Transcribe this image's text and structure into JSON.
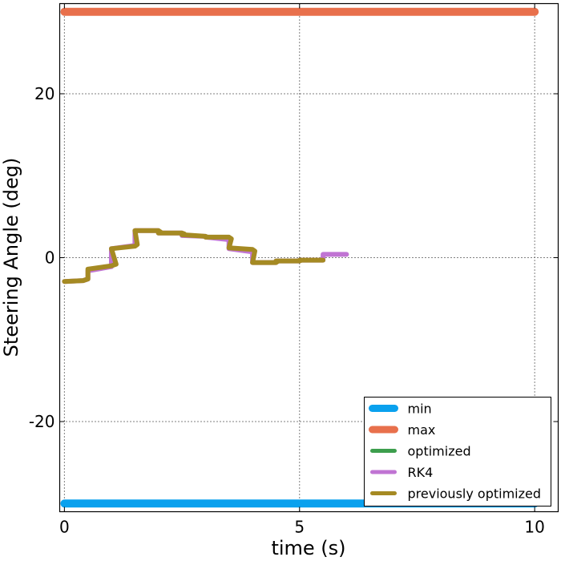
{
  "chart_data": {
    "type": "line",
    "title": "",
    "xlabel": "time (s)",
    "ylabel": "Steering Angle (deg)",
    "xlim": [
      -0.1,
      10.5
    ],
    "ylim": [
      -31,
      31
    ],
    "xticks": [
      0,
      5,
      10
    ],
    "xtick_labels": [
      "0",
      "5",
      "10"
    ],
    "yticks": [
      -20,
      0,
      20
    ],
    "ytick_labels": [
      "-20",
      "0",
      "20"
    ],
    "grid": true,
    "legend_position": "bottom-right",
    "series": [
      {
        "name": "min",
        "color": "#0aa1ee",
        "x": [
          0,
          10
        ],
        "y": [
          -30,
          -30
        ]
      },
      {
        "name": "max",
        "color": "#e8704c",
        "x": [
          0,
          10
        ],
        "y": [
          30,
          30
        ]
      },
      {
        "name": "optimized",
        "color": "#3d9e4d",
        "x": [],
        "y": []
      },
      {
        "name": "RK4",
        "color": "#c074d3",
        "x": [
          0,
          0.4,
          0.5,
          0.5,
          1.0,
          1.0,
          1.5,
          1.5,
          2.0,
          2.0,
          2.5,
          2.5,
          3.0,
          3.0,
          3.5,
          3.5,
          4.0,
          4.0,
          4.5,
          4.5,
          5.0,
          5.0,
          5.5,
          5.5,
          6.0
        ],
        "y": [
          -2.9,
          -2.8,
          -2.6,
          -1.6,
          -1.1,
          1.1,
          1.5,
          3.3,
          3.3,
          3.0,
          3.0,
          2.7,
          2.6,
          2.5,
          2.2,
          1.1,
          0.7,
          -0.6,
          -0.6,
          -0.4,
          -0.4,
          -0.3,
          -0.3,
          0.4,
          0.4
        ]
      },
      {
        "name": "previously optimized",
        "color": "#a58a23",
        "x": [
          0,
          0.4,
          0.5,
          0.5,
          1.0,
          1.1,
          1.0,
          1.5,
          1.55,
          1.5,
          2.0,
          2.05,
          2.0,
          2.5,
          2.55,
          2.5,
          3.0,
          3.05,
          3.0,
          3.5,
          3.55,
          3.5,
          4.0,
          4.05,
          4.0,
          4.5,
          4.55,
          4.5,
          5.0,
          5.05,
          5.0,
          5.5
        ],
        "y": [
          -2.9,
          -2.8,
          -2.6,
          -1.4,
          -1.0,
          -0.8,
          1.1,
          1.4,
          1.6,
          3.3,
          3.3,
          3.1,
          3.0,
          3.0,
          2.9,
          2.8,
          2.6,
          2.5,
          2.5,
          2.5,
          2.3,
          1.2,
          1.0,
          0.8,
          -0.6,
          -0.6,
          -0.4,
          -0.4,
          -0.4,
          -0.3,
          -0.3,
          -0.3
        ]
      }
    ]
  }
}
